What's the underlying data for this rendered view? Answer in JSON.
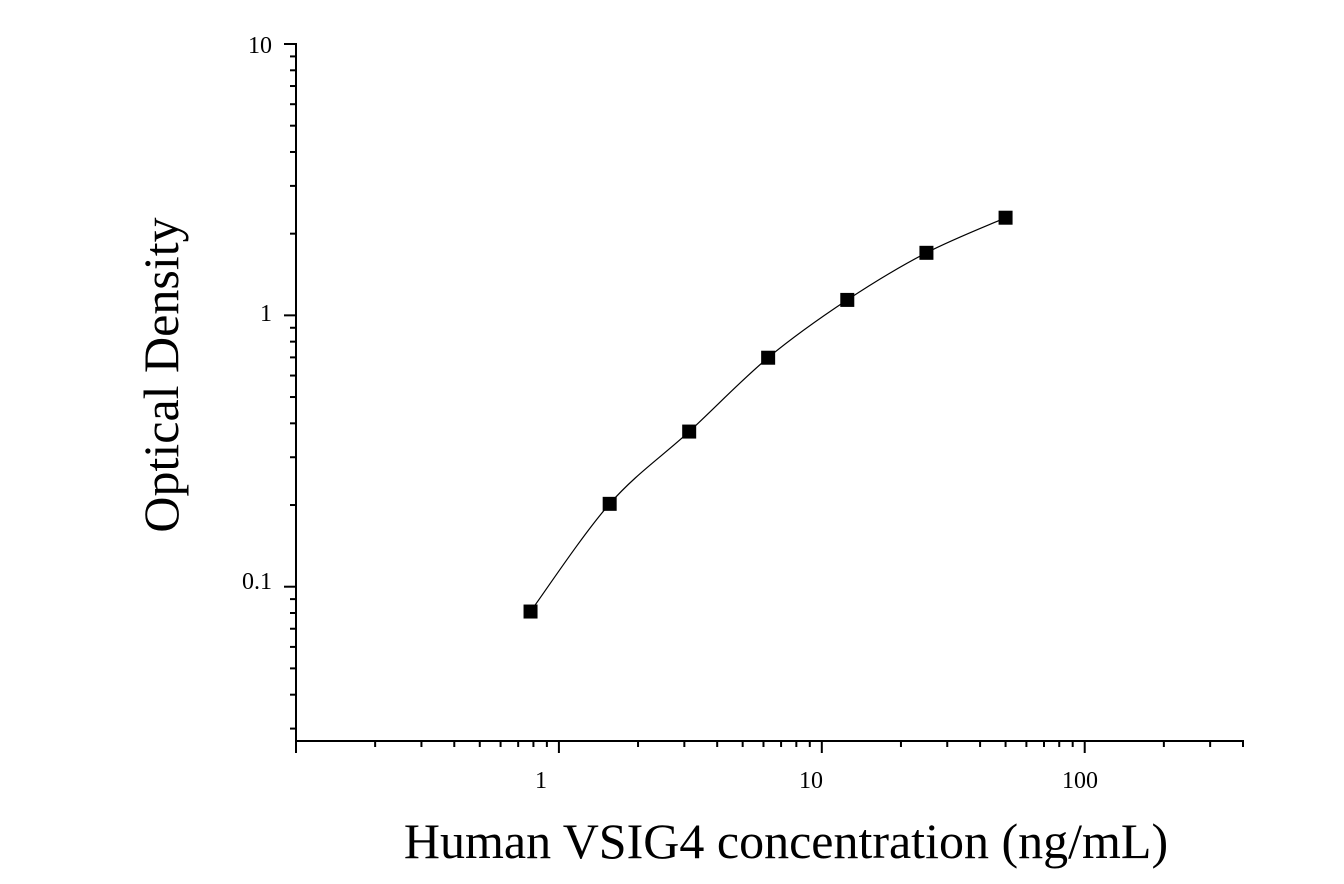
{
  "chart_data": {
    "type": "scatter",
    "xlabel": "Human VSIG4 concentration (ng/mL)",
    "ylabel": "Optical Density",
    "xscale": "log",
    "yscale": "log",
    "xlim": [
      0.1,
      400
    ],
    "ylim": [
      0.027,
      10
    ],
    "grid": false,
    "legend": "none",
    "x_ticks": [
      "1",
      "10",
      "100"
    ],
    "y_ticks": [
      "0.1",
      "1",
      "10"
    ],
    "series": [
      {
        "x": [
          0.78,
          1.56,
          3.13,
          6.25,
          12.5,
          25,
          50
        ],
        "y": [
          0.081,
          0.202,
          0.373,
          0.698,
          1.14,
          1.7,
          2.29
        ],
        "marker": "square",
        "fit_curve": true
      }
    ]
  }
}
